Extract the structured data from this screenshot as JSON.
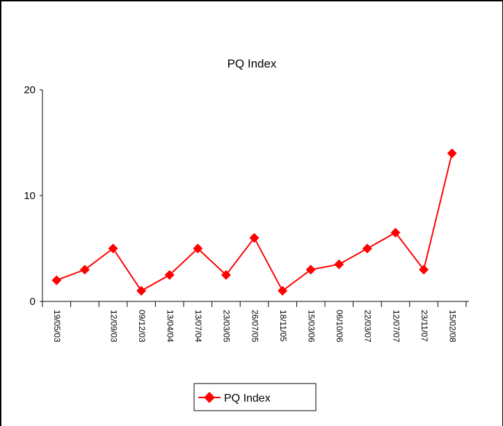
{
  "chart_data": {
    "type": "line",
    "title": "PQ Index",
    "xlabel": "",
    "ylabel": "",
    "ylim": [
      0,
      20
    ],
    "yticks": [
      0,
      10,
      20
    ],
    "categories": [
      "19/05/03",
      "",
      "12/09/03",
      "09/12/03",
      "13/04/04",
      "13/07/04",
      "23/03/05",
      "26/07/05",
      "18/11/05",
      "15/03/06",
      "06/10/06",
      "22/03/07",
      "12/07/07",
      "23/11/07",
      "15/02/08"
    ],
    "series": [
      {
        "name": "PQ Index",
        "color": "#ff0000",
        "marker": "diamond",
        "values": [
          2,
          3,
          5,
          1,
          2.5,
          5,
          2.5,
          6,
          1,
          3,
          3.5,
          5,
          6.5,
          3,
          14
        ]
      }
    ],
    "grid": false,
    "legend_placement": "bottom-center"
  }
}
